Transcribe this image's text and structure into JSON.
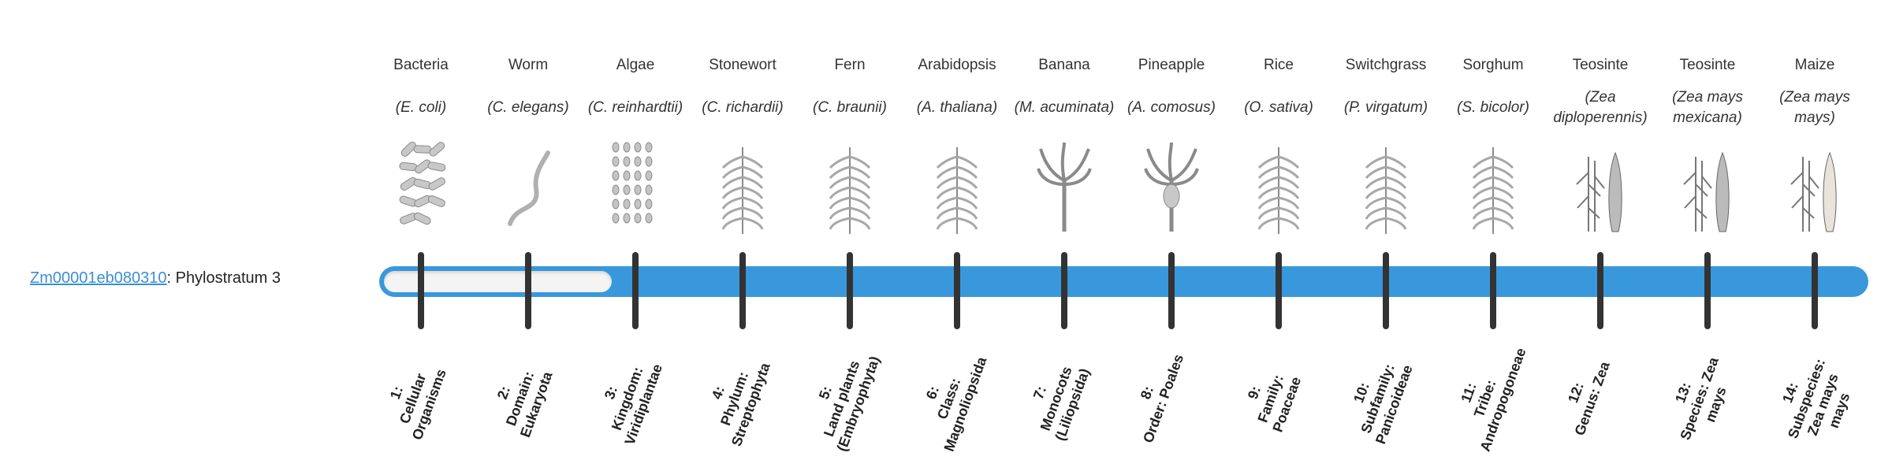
{
  "gene": {
    "id": "Zm00001eb080310",
    "suffix": ": Phylostratum 3"
  },
  "progress": {
    "current_stratum": 3,
    "total_strata": 14
  },
  "colors": {
    "accent": "#3898db",
    "track": "#f4f4f4",
    "tick": "#333333",
    "link": "#3a8fd6"
  },
  "strata": [
    {
      "name": "Bacteria",
      "species": "(E. coli)",
      "icon": "bacteria-icon",
      "num": "1:",
      "rank": "Cellular Organisms"
    },
    {
      "name": "Worm",
      "species": "(C. elegans)",
      "icon": "worm-icon",
      "num": "2:",
      "rank": "Domain: Eukaryota"
    },
    {
      "name": "Algae",
      "species": "(C. reinhardtii)",
      "icon": "algae-icon",
      "num": "3:",
      "rank": "Kingdom: Viridiplantae"
    },
    {
      "name": "Stonewort",
      "species": "(C. richardii)",
      "icon": "stonewort-icon",
      "num": "4:",
      "rank": "Phylum: Streptophyta"
    },
    {
      "name": "Fern",
      "species": "(C. braunii)",
      "icon": "fern-icon",
      "num": "5:",
      "rank": "Land plants (Embryophyta)"
    },
    {
      "name": "Arabidopsis",
      "species": "(A. thaliana)",
      "icon": "arabidopsis-icon",
      "num": "6:",
      "rank": "Class: Magnoliopsida"
    },
    {
      "name": "Banana",
      "species": "(M. acuminata)",
      "icon": "banana-icon",
      "num": "7:",
      "rank": "Monocots (Liliopsida)"
    },
    {
      "name": "Pineapple",
      "species": "(A. comosus)",
      "icon": "pineapple-icon",
      "num": "8:",
      "rank": "Order: Poales"
    },
    {
      "name": "Rice",
      "species": "(O. sativa)",
      "icon": "rice-icon",
      "num": "9:",
      "rank": "Family: Poaceae"
    },
    {
      "name": "Switchgrass",
      "species": "(P. virgatum)",
      "icon": "switchgrass-icon",
      "num": "10:",
      "rank": "Subfamily: Panicoideae"
    },
    {
      "name": "Sorghum",
      "species": "(S. bicolor)",
      "icon": "sorghum-icon",
      "num": "11:",
      "rank": "Tribe: Andropogoneae"
    },
    {
      "name": "Teosinte",
      "species": "(Zea diploperennis)",
      "icon": "teosinte-icon",
      "num": "12:",
      "rank": "Genus: Zea"
    },
    {
      "name": "Teosinte",
      "species": "(Zea mays mexicana)",
      "icon": "teosinte-mexicana-icon",
      "num": "13:",
      "rank": "Species: Zea mays"
    },
    {
      "name": "Maize",
      "species": "(Zea mays mays)",
      "icon": "maize-icon",
      "num": "14:",
      "rank": "Subspecies: Zea mays mays"
    }
  ]
}
